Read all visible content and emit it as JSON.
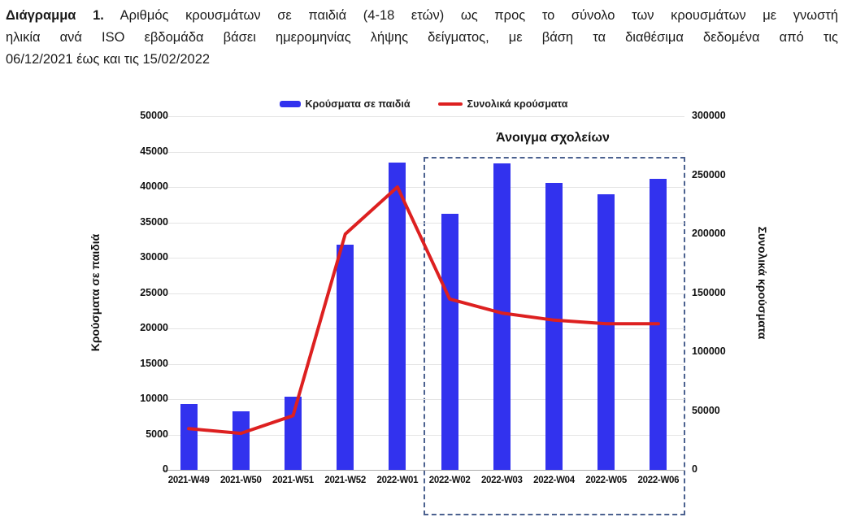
{
  "caption": {
    "bold": "Διάγραμμα 1.",
    "line1_rest": "Αριθμός κρουσμάτων σε παιδιά (4-18 ετών) ως προς το σύνολο των κρουσμάτων με γνωστή",
    "line2": "ηλικία ανά ISO εβδομάδα βάσει ημερομηνίας λήψης δείγματος, με βάση τα διαθέσιμα δεδομένα από τις",
    "line3": "06/12/2021 έως και τις 15/02/2022"
  },
  "legend": {
    "children_label": "Κρούσματα σε παιδιά",
    "totals_label": "Συνολικά κρούσματα"
  },
  "colors": {
    "bar_blue": "#3232ee",
    "line_red": "#dd2020",
    "annotation_box": "#4b618f"
  },
  "chart_data": {
    "type": "bar",
    "categories": [
      "2021-W49",
      "2021-W50",
      "2021-W51",
      "2021-W52",
      "2022-W01",
      "2022-W02",
      "2022-W03",
      "2022-W04",
      "2022-W05",
      "2022-W06"
    ],
    "series": [
      {
        "name": "Κρούσματα σε παιδιά",
        "type": "bar",
        "axis": "left",
        "color": "#3232ee",
        "values": [
          9300,
          8300,
          10300,
          31800,
          43500,
          36200,
          43300,
          40600,
          39000,
          41100
        ]
      },
      {
        "name": "Συνολικά κρούσματα",
        "type": "line",
        "axis": "right",
        "color": "#dd2020",
        "values": [
          35000,
          31000,
          46000,
          200000,
          240000,
          145000,
          133000,
          127000,
          124000,
          124000
        ]
      }
    ],
    "left_axis": {
      "label": "Κρούσματα σε παιδιά",
      "min": 0,
      "max": 50000,
      "step": 5000
    },
    "right_axis": {
      "label": "Συνολικά κρούσματα",
      "min": 0,
      "max": 300000,
      "step": 50000
    },
    "annotation": {
      "label": "Άνοιγμα σχολείων",
      "from_category": "2022-W02",
      "to_category": "2022-W06"
    },
    "legend_position": "top",
    "grid": true
  }
}
